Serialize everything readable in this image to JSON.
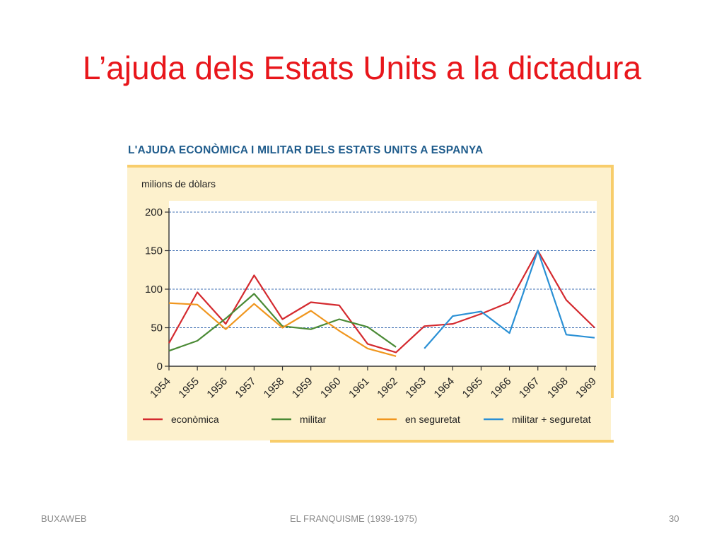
{
  "slide": {
    "title": "L’ajuda dels Estats Units a la dictadura",
    "footer_left": "BUXAWEB",
    "footer_center": "EL FRANQUISME (1939-1975)",
    "footer_right": "30"
  },
  "colors": {
    "title": "#e8161b",
    "figure_title": "#1f5c8c",
    "panel": "#fdf1cd",
    "panel_border": "#f8cd6b",
    "grid": "#3f6fb3"
  },
  "chart_data": {
    "type": "line",
    "title": "L'AJUDA ECONÒMICA I MILITAR DELS ESTATS UNITS A ESPANYA",
    "ylabel": "milions de dòlars",
    "xlabel": "",
    "x": [
      1954,
      1955,
      1956,
      1957,
      1958,
      1959,
      1960,
      1961,
      1962,
      1963,
      1964,
      1965,
      1966,
      1967,
      1968,
      1969
    ],
    "ylim": [
      0,
      200
    ],
    "yticks": [
      0,
      50,
      100,
      150,
      200
    ],
    "grid": "horizontal dashed",
    "legend_position": "bottom",
    "series": [
      {
        "name": "econòmica",
        "color": "#d42a2f",
        "values": [
          30,
          96,
          55,
          118,
          61,
          83,
          79,
          29,
          18,
          52,
          55,
          68,
          83,
          150,
          86,
          50
        ]
      },
      {
        "name": "militar",
        "color": "#4a8a35",
        "values": [
          20,
          33,
          62,
          94,
          52,
          48,
          61,
          51,
          25,
          null,
          null,
          null,
          null,
          null,
          null,
          null
        ]
      },
      {
        "name": "en seguretat",
        "color": "#f0961e",
        "values": [
          82,
          80,
          48,
          81,
          50,
          72,
          46,
          23,
          13,
          null,
          null,
          null,
          null,
          null,
          null,
          null
        ]
      },
      {
        "name": "militar + seguretat",
        "color": "#2a90d5",
        "values": [
          null,
          null,
          null,
          null,
          null,
          null,
          null,
          null,
          null,
          23,
          65,
          71,
          43,
          150,
          41,
          37
        ]
      }
    ]
  }
}
